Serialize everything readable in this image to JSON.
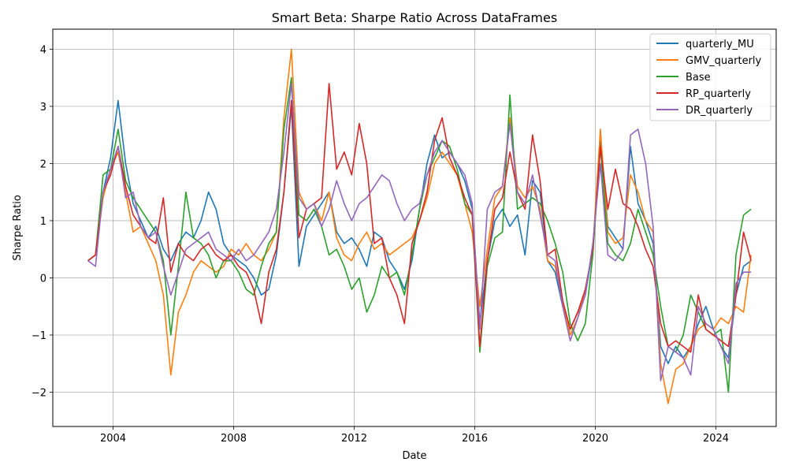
{
  "chart_data": {
    "type": "line",
    "title": "Smart Beta: Sharpe Ratio Across DataFrames",
    "xlabel": "Date",
    "ylabel": "Sharpe Ratio",
    "xlim": [
      "2002-01",
      "2026-01"
    ],
    "ylim": [
      -2.6,
      4.35
    ],
    "x_ticks": [
      "2004",
      "2008",
      "2012",
      "2016",
      "2020",
      "2024"
    ],
    "y_ticks": [
      "−2",
      "−1",
      "0",
      "1",
      "2",
      "3",
      "4"
    ],
    "grid": true,
    "legend": "top-right",
    "x": [
      "2003-03",
      "2003-06",
      "2003-09",
      "2003-12",
      "2004-03",
      "2004-06",
      "2004-09",
      "2004-12",
      "2005-03",
      "2005-06",
      "2005-09",
      "2005-12",
      "2006-03",
      "2006-06",
      "2006-09",
      "2006-12",
      "2007-03",
      "2007-06",
      "2007-09",
      "2007-12",
      "2008-03",
      "2008-06",
      "2008-09",
      "2008-12",
      "2009-03",
      "2009-06",
      "2009-09",
      "2009-12",
      "2010-03",
      "2010-06",
      "2010-09",
      "2010-12",
      "2011-03",
      "2011-06",
      "2011-09",
      "2011-12",
      "2012-03",
      "2012-06",
      "2012-09",
      "2012-12",
      "2013-03",
      "2013-06",
      "2013-09",
      "2013-12",
      "2014-03",
      "2014-06",
      "2014-09",
      "2014-12",
      "2015-03",
      "2015-06",
      "2015-09",
      "2015-12",
      "2016-03",
      "2016-06",
      "2016-09",
      "2016-12",
      "2017-03",
      "2017-06",
      "2017-09",
      "2017-12",
      "2018-03",
      "2018-06",
      "2018-09",
      "2018-12",
      "2019-03",
      "2019-06",
      "2019-09",
      "2019-12",
      "2020-03",
      "2020-06",
      "2020-09",
      "2020-12",
      "2021-03",
      "2021-06",
      "2021-09",
      "2021-12",
      "2022-03",
      "2022-06",
      "2022-09",
      "2022-12",
      "2023-03",
      "2023-06",
      "2023-09",
      "2023-12",
      "2024-03",
      "2024-06",
      "2024-09",
      "2024-12",
      "2025-03"
    ],
    "series": [
      {
        "name": "quarterly_MU",
        "color": "#1f77b4",
        "values": [
          0.3,
          0.4,
          1.5,
          2.1,
          3.1,
          2.0,
          1.3,
          1.0,
          0.7,
          0.9,
          0.5,
          0.3,
          0.6,
          0.8,
          0.7,
          1.0,
          1.5,
          1.2,
          0.6,
          0.4,
          0.3,
          0.2,
          0.0,
          -0.3,
          -0.2,
          0.4,
          1.5,
          3.0,
          0.2,
          0.9,
          1.1,
          1.3,
          1.5,
          0.8,
          0.6,
          0.7,
          0.5,
          0.2,
          0.8,
          0.7,
          0.3,
          0.1,
          -0.2,
          0.3,
          1.2,
          2.0,
          2.5,
          2.1,
          2.2,
          2.0,
          1.7,
          1.2,
          -0.8,
          0.3,
          1.0,
          1.2,
          0.9,
          1.1,
          0.4,
          1.7,
          1.5,
          0.3,
          0.1,
          -0.5,
          -0.9,
          -0.6,
          -0.3,
          0.5,
          2.4,
          0.9,
          0.7,
          0.5,
          2.3,
          1.3,
          1.0,
          0.6,
          -1.2,
          -1.5,
          -1.2,
          -1.4,
          -1.2,
          -0.8,
          -0.5,
          -0.9,
          -1.2,
          -1.4,
          -0.3,
          0.2,
          0.3
        ]
      },
      {
        "name": "GMV_quarterly",
        "color": "#ff7f0e",
        "values": [
          0.3,
          0.4,
          1.4,
          1.9,
          2.2,
          1.5,
          0.8,
          0.9,
          0.6,
          0.3,
          -0.3,
          -1.7,
          -0.6,
          -0.3,
          0.1,
          0.3,
          0.2,
          0.1,
          0.2,
          0.5,
          0.4,
          0.6,
          0.4,
          0.3,
          0.5,
          0.8,
          2.8,
          4.0,
          1.5,
          1.2,
          1.3,
          1.0,
          1.5,
          0.7,
          0.4,
          0.3,
          0.6,
          0.8,
          0.5,
          0.6,
          0.4,
          0.5,
          0.6,
          0.7,
          1.0,
          1.4,
          2.0,
          2.2,
          2.0,
          1.8,
          1.3,
          0.8,
          -0.5,
          0.5,
          1.4,
          1.6,
          2.8,
          1.6,
          1.4,
          1.6,
          1.2,
          0.3,
          0.2,
          -0.4,
          -1.0,
          -0.7,
          -0.2,
          0.5,
          2.6,
          0.8,
          0.6,
          0.7,
          1.8,
          1.5,
          1.0,
          0.8,
          -1.5,
          -2.2,
          -1.6,
          -1.5,
          -1.2,
          -0.9,
          -0.8,
          -0.9,
          -0.7,
          -0.8,
          -0.5,
          -0.6,
          0.4
        ]
      },
      {
        "name": "Base",
        "color": "#2ca02c",
        "values": [
          0.3,
          0.4,
          1.8,
          1.9,
          2.6,
          1.7,
          1.4,
          1.2,
          1.0,
          0.8,
          0.3,
          -1.0,
          0.2,
          1.5,
          0.7,
          0.6,
          0.4,
          0.0,
          0.3,
          0.3,
          0.1,
          -0.2,
          -0.3,
          0.2,
          0.6,
          0.8,
          2.6,
          3.5,
          1.1,
          1.0,
          1.2,
          0.9,
          0.4,
          0.5,
          0.2,
          -0.2,
          0.0,
          -0.6,
          -0.3,
          0.2,
          0.0,
          0.1,
          -0.3,
          0.4,
          1.2,
          1.8,
          2.1,
          2.4,
          2.3,
          1.9,
          1.3,
          1.1,
          -1.3,
          0.2,
          0.7,
          0.8,
          3.2,
          1.2,
          1.3,
          1.4,
          1.3,
          1.0,
          0.6,
          0.1,
          -0.8,
          -1.1,
          -0.8,
          0.4,
          2.3,
          0.6,
          0.4,
          0.3,
          0.6,
          1.2,
          0.8,
          0.4,
          -0.5,
          -1.2,
          -1.3,
          -1.0,
          -0.3,
          -0.6,
          -0.9,
          -1.0,
          -0.9,
          -2.0,
          0.4,
          1.1,
          1.2
        ]
      },
      {
        "name": "RP_quarterly",
        "color": "#d62728",
        "values": [
          0.3,
          0.4,
          1.5,
          1.8,
          2.3,
          1.6,
          1.1,
          0.9,
          0.7,
          0.6,
          1.4,
          0.1,
          0.6,
          0.4,
          0.3,
          0.5,
          0.6,
          0.4,
          0.3,
          0.4,
          0.2,
          0.1,
          -0.2,
          -0.8,
          0.1,
          0.5,
          1.5,
          3.1,
          0.7,
          1.2,
          1.3,
          1.4,
          3.4,
          1.9,
          2.2,
          1.8,
          2.7,
          2.0,
          0.6,
          0.7,
          0.0,
          -0.3,
          -0.8,
          0.6,
          1.0,
          1.5,
          2.4,
          2.8,
          2.1,
          1.8,
          1.4,
          1.1,
          -1.2,
          0.3,
          1.2,
          1.4,
          2.2,
          1.5,
          1.2,
          2.5,
          1.7,
          0.4,
          0.5,
          -0.4,
          -0.9,
          -0.6,
          -0.2,
          0.5,
          2.3,
          1.2,
          1.9,
          1.3,
          1.2,
          0.9,
          0.5,
          0.2,
          -0.8,
          -1.2,
          -1.1,
          -1.2,
          -1.3,
          -0.3,
          -0.9,
          -1.0,
          -1.1,
          -1.2,
          -0.3,
          0.8,
          0.3
        ]
      },
      {
        "name": "DR_quarterly",
        "color": "#9467bd",
        "values": [
          0.3,
          0.2,
          1.5,
          1.9,
          2.3,
          1.4,
          1.5,
          0.9,
          0.7,
          0.8,
          0.2,
          -0.3,
          0.1,
          0.5,
          0.6,
          0.7,
          0.8,
          0.5,
          0.4,
          0.3,
          0.5,
          0.3,
          0.4,
          0.6,
          0.8,
          1.2,
          2.2,
          3.4,
          1.4,
          1.2,
          1.3,
          0.9,
          1.2,
          1.7,
          1.3,
          1.0,
          1.3,
          1.4,
          1.6,
          1.8,
          1.7,
          1.3,
          1.0,
          1.2,
          1.3,
          1.8,
          2.2,
          2.4,
          2.2,
          2.0,
          1.8,
          1.3,
          -0.9,
          1.2,
          1.5,
          1.6,
          2.7,
          1.5,
          1.3,
          1.8,
          1.1,
          0.4,
          0.3,
          -0.5,
          -1.1,
          -0.7,
          -0.3,
          0.6,
          2.0,
          0.4,
          0.3,
          0.5,
          2.5,
          2.6,
          2.0,
          0.9,
          -1.8,
          -1.2,
          -1.3,
          -1.4,
          -1.7,
          -0.5,
          -0.8,
          -0.9,
          -1.2,
          -1.5,
          -0.1,
          0.1,
          0.1
        ]
      }
    ]
  }
}
